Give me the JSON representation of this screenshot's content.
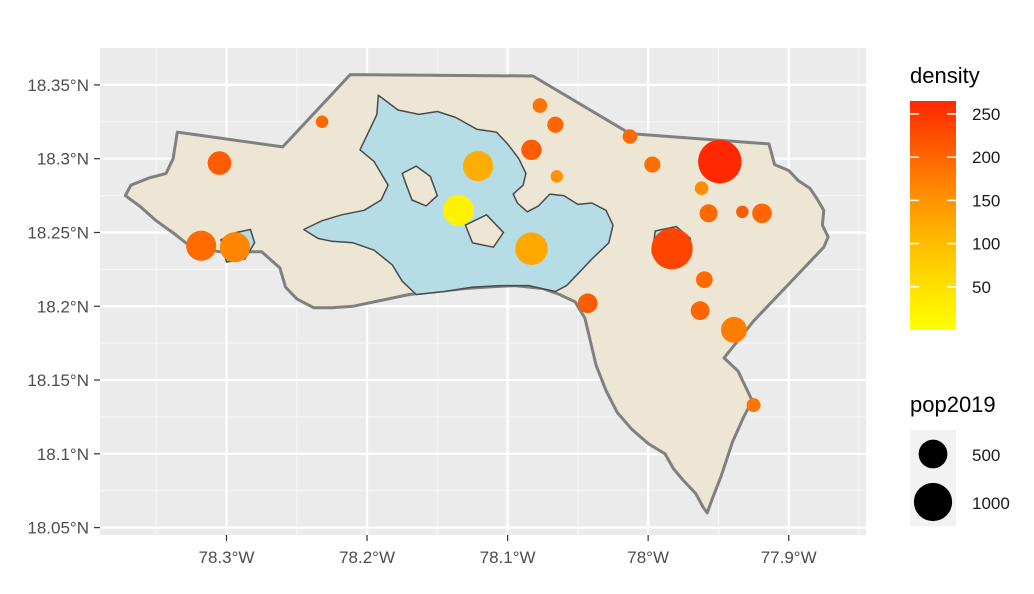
{
  "chart_data": {
    "type": "map",
    "title": "",
    "xlabel": "",
    "ylabel": "",
    "x_range": [
      -78.39,
      -77.845
    ],
    "y_range": [
      18.045,
      18.375
    ],
    "x_ticks": [
      -78.3,
      -78.2,
      -78.1,
      -78.0,
      -77.9
    ],
    "x_tick_labels": [
      "78.3°W",
      "78.2°W",
      "78.1°W",
      "78°W",
      "77.9°W"
    ],
    "y_ticks": [
      18.05,
      18.1,
      18.15,
      18.2,
      18.25,
      18.3,
      18.35
    ],
    "y_tick_labels": [
      "18.05°N",
      "18.1°N",
      "18.15°N",
      "18.2°N",
      "18.25°N",
      "18.3°N",
      "18.35°N"
    ],
    "grid": true,
    "panel_background": "#ebebeb",
    "land_color": "#ede6d5",
    "boundary_color": "#808080",
    "water_color": "#b6dce6",
    "legend_position": "right",
    "color_legend": {
      "title": "density",
      "ticks": [
        50,
        100,
        150,
        200,
        250
      ],
      "labels": [
        "50",
        "100",
        "150",
        "200",
        "250"
      ],
      "range": [
        0,
        265
      ],
      "colors": [
        "#ffff00",
        "#ffd000",
        "#ffa500",
        "#ff7a00",
        "#ff3000"
      ]
    },
    "size_legend": {
      "title": "pop2019",
      "labels": [
        "500",
        "1000"
      ],
      "values": [
        500,
        1000
      ]
    },
    "points": [
      {
        "lon": -78.232,
        "lat": 18.325,
        "pop2019": 40,
        "density": 200
      },
      {
        "lon": -78.305,
        "lat": 18.297,
        "pop2019": 300,
        "density": 210
      },
      {
        "lon": -78.318,
        "lat": 18.241,
        "pop2019": 560,
        "density": 195
      },
      {
        "lon": -78.294,
        "lat": 18.24,
        "pop2019": 560,
        "density": 165
      },
      {
        "lon": -78.135,
        "lat": 18.265,
        "pop2019": 600,
        "density": 20
      },
      {
        "lon": -78.121,
        "lat": 18.295,
        "pop2019": 560,
        "density": 120
      },
      {
        "lon": -78.083,
        "lat": 18.239,
        "pop2019": 680,
        "density": 125
      },
      {
        "lon": -78.077,
        "lat": 18.336,
        "pop2019": 70,
        "density": 185
      },
      {
        "lon": -78.066,
        "lat": 18.323,
        "pop2019": 100,
        "density": 200
      },
      {
        "lon": -78.083,
        "lat": 18.306,
        "pop2019": 200,
        "density": 210
      },
      {
        "lon": -78.065,
        "lat": 18.288,
        "pop2019": 40,
        "density": 150
      },
      {
        "lon": -78.043,
        "lat": 18.202,
        "pop2019": 180,
        "density": 210
      },
      {
        "lon": -78.013,
        "lat": 18.315,
        "pop2019": 70,
        "density": 195
      },
      {
        "lon": -77.997,
        "lat": 18.296,
        "pop2019": 100,
        "density": 190
      },
      {
        "lon": -77.983,
        "lat": 18.239,
        "pop2019": 1200,
        "density": 235
      },
      {
        "lon": -77.949,
        "lat": 18.298,
        "pop2019": 1350,
        "density": 265
      },
      {
        "lon": -77.962,
        "lat": 18.28,
        "pop2019": 55,
        "density": 160
      },
      {
        "lon": -77.957,
        "lat": 18.263,
        "pop2019": 140,
        "density": 195
      },
      {
        "lon": -77.933,
        "lat": 18.264,
        "pop2019": 40,
        "density": 210
      },
      {
        "lon": -77.919,
        "lat": 18.263,
        "pop2019": 180,
        "density": 200
      },
      {
        "lon": -77.96,
        "lat": 18.218,
        "pop2019": 110,
        "density": 195
      },
      {
        "lon": -77.963,
        "lat": 18.197,
        "pop2019": 160,
        "density": 200
      },
      {
        "lon": -77.939,
        "lat": 18.184,
        "pop2019": 380,
        "density": 175
      },
      {
        "lon": -77.925,
        "lat": 18.133,
        "pop2019": 60,
        "density": 185
      }
    ]
  }
}
